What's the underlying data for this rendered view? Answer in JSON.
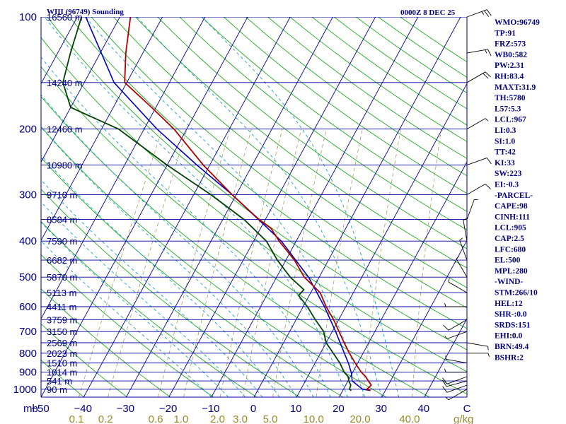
{
  "title": "WIII (96749) Sounding",
  "datetime": "0000Z  8 DEC 25",
  "colors": {
    "isobar": "#0000a0",
    "isotherm": "#0000a0",
    "dry_adiabat": "#22aa22",
    "moist_adiabat": "#1aa0c8",
    "mixing_ratio": "#a0a060",
    "temperature": "#b00000",
    "dewpoint": "#004000",
    "parcel": "#0000c0",
    "wind": "#000000",
    "text": "#000080"
  },
  "chart_data": {
    "type": "skew-t",
    "title": "WIII (96749) Sounding",
    "pressure_unit": "mb",
    "mixing_ratio_unit": "g/kg",
    "pressure_levels": [
      100,
      200,
      300,
      400,
      500,
      600,
      700,
      800,
      900,
      1000
    ],
    "height_levels": [
      {
        "label": "16560 m",
        "p": 100
      },
      {
        "label": "14240 m",
        "p": 150
      },
      {
        "label": "12460 m",
        "p": 200
      },
      {
        "label": "10980 m",
        "p": 250
      },
      {
        "label": "9710 m",
        "p": 300
      },
      {
        "label": "8584 m",
        "p": 350
      },
      {
        "label": "7590 m",
        "p": 400
      },
      {
        "label": "6682 m",
        "p": 450
      },
      {
        "label": "5870 m",
        "p": 500
      },
      {
        "label": "5113 m",
        "p": 550
      },
      {
        "label": "4411 m",
        "p": 600
      },
      {
        "label": "3759 m",
        "p": 650
      },
      {
        "label": "3150 m",
        "p": 700
      },
      {
        "label": "2569 m",
        "p": 750
      },
      {
        "label": "2023 m",
        "p": 800
      },
      {
        "label": "1510 m",
        "p": 850
      },
      {
        "label": "1014 m",
        "p": 900
      },
      {
        "label": "541 m",
        "p": 950
      },
      {
        "label": "90 m",
        "p": 1000
      }
    ],
    "temperature_ticks": [
      -50,
      -40,
      -30,
      -20,
      -10,
      0,
      10,
      20,
      30,
      40
    ],
    "mixing_ratio_ticks": [
      "0.1",
      "0.2",
      "0.6",
      "1.0",
      "2.0",
      "3.0",
      "5.0",
      "10.0",
      "20.0",
      "40.0"
    ],
    "mixing_ratio_values": [
      0.1,
      0.2,
      0.6,
      1.0,
      2.0,
      3.0,
      5.0,
      10.0,
      20.0,
      40.0
    ],
    "p_range": [
      100,
      1050
    ],
    "t_range": [
      -50,
      50
    ],
    "temperature_profile": [
      {
        "p": 1008,
        "t": 26.5
      },
      {
        "p": 1000,
        "t": 25.5
      },
      {
        "p": 975,
        "t": 26.0
      },
      {
        "p": 950,
        "t": 24.8
      },
      {
        "p": 925,
        "t": 23.6
      },
      {
        "p": 900,
        "t": 22.0
      },
      {
        "p": 850,
        "t": 19.4
      },
      {
        "p": 800,
        "t": 16.8
      },
      {
        "p": 750,
        "t": 14.2
      },
      {
        "p": 700,
        "t": 11.6
      },
      {
        "p": 650,
        "t": 8.8
      },
      {
        "p": 600,
        "t": 5.4
      },
      {
        "p": 550,
        "t": 2.2
      },
      {
        "p": 500,
        "t": -3.5
      },
      {
        "p": 450,
        "t": -8.0
      },
      {
        "p": 400,
        "t": -14.0
      },
      {
        "p": 370,
        "t": -17.5
      },
      {
        "p": 350,
        "t": -21.5
      },
      {
        "p": 300,
        "t": -31.0
      },
      {
        "p": 250,
        "t": -41.5
      },
      {
        "p": 200,
        "t": -53.0
      },
      {
        "p": 175,
        "t": -61.0
      },
      {
        "p": 150,
        "t": -70.5
      },
      {
        "p": 125,
        "t": -74.0
      },
      {
        "p": 100,
        "t": -77.5
      }
    ],
    "dewpoint_profile": [
      {
        "p": 1008,
        "t": 22.0
      },
      {
        "p": 1000,
        "t": 21.4
      },
      {
        "p": 975,
        "t": 21.2
      },
      {
        "p": 950,
        "t": 20.2
      },
      {
        "p": 925,
        "t": 19.5
      },
      {
        "p": 900,
        "t": 18.0
      },
      {
        "p": 850,
        "t": 15.8
      },
      {
        "p": 800,
        "t": 13.0
      },
      {
        "p": 750,
        "t": 10.0
      },
      {
        "p": 700,
        "t": 8.0
      },
      {
        "p": 650,
        "t": 4.5
      },
      {
        "p": 600,
        "t": 1.0
      },
      {
        "p": 560,
        "t": -2.5
      },
      {
        "p": 540,
        "t": -2.0
      },
      {
        "p": 500,
        "t": -6.8
      },
      {
        "p": 450,
        "t": -12.0
      },
      {
        "p": 400,
        "t": -17.0
      },
      {
        "p": 350,
        "t": -25.0
      },
      {
        "p": 300,
        "t": -36.0
      },
      {
        "p": 250,
        "t": -50.0
      },
      {
        "p": 200,
        "t": -66.0
      },
      {
        "p": 175,
        "t": -80.0
      },
      {
        "p": 150,
        "t": -85.0
      },
      {
        "p": 125,
        "t": -87.0
      },
      {
        "p": 100,
        "t": -89.0
      }
    ],
    "parcel_profile": [
      {
        "p": 1008,
        "t": 26.5
      },
      {
        "p": 1000,
        "t": 24.5
      },
      {
        "p": 950,
        "t": 21.0
      },
      {
        "p": 905,
        "t": 19.8
      },
      {
        "p": 850,
        "t": 17.8
      },
      {
        "p": 800,
        "t": 15.6
      },
      {
        "p": 700,
        "t": 10.8
      },
      {
        "p": 600,
        "t": 5.0
      },
      {
        "p": 500,
        "t": -2.5
      },
      {
        "p": 400,
        "t": -13.5
      },
      {
        "p": 300,
        "t": -31.0
      },
      {
        "p": 250,
        "t": -43.0
      },
      {
        "p": 200,
        "t": -57.0
      },
      {
        "p": 150,
        "t": -73.0
      },
      {
        "p": 100,
        "t": -88.0
      }
    ],
    "wind_barbs": [
      {
        "p": 1000,
        "dir": 240,
        "kt": 5
      },
      {
        "p": 975,
        "dir": 250,
        "kt": 10
      },
      {
        "p": 950,
        "dir": 255,
        "kt": 10
      },
      {
        "p": 925,
        "dir": 250,
        "kt": 10
      },
      {
        "p": 900,
        "dir": 270,
        "kt": 5
      },
      {
        "p": 850,
        "dir": 280,
        "kt": 5
      },
      {
        "p": 800,
        "dir": 90,
        "kt": 5
      },
      {
        "p": 750,
        "dir": 100,
        "kt": 5
      },
      {
        "p": 700,
        "dir": 250,
        "kt": 5
      },
      {
        "p": 650,
        "dir": 240,
        "kt": 10
      },
      {
        "p": 600,
        "dir": 270,
        "kt": 5
      },
      {
        "p": 550,
        "dir": 300,
        "kt": 5
      },
      {
        "p": 500,
        "dir": 330,
        "kt": 5
      },
      {
        "p": 450,
        "dir": 340,
        "kt": 5
      },
      {
        "p": 400,
        "dir": 350,
        "kt": 5
      },
      {
        "p": 350,
        "dir": 20,
        "kt": 5
      },
      {
        "p": 300,
        "dir": 60,
        "kt": 10
      },
      {
        "p": 250,
        "dir": 70,
        "kt": 10
      },
      {
        "p": 200,
        "dir": 60,
        "kt": 5
      },
      {
        "p": 150,
        "dir": 60,
        "kt": 20
      },
      {
        "p": 125,
        "dir": 80,
        "kt": 15
      },
      {
        "p": 100,
        "dir": 70,
        "kt": 25
      }
    ]
  },
  "indices": [
    "WMO:96749",
    "TP:91",
    "FRZ:573",
    "WB0:582",
    "PW:2.31",
    "RH:83.4",
    "MAXT:31.9",
    "TH:5780",
    "L57:5.3",
    "LCL:967",
    "LI:0.3",
    "SI:1.0",
    "TT:42",
    "KI:33",
    "SW:223",
    "EI:-0.3",
    "-PARCEL-",
    "CAPE:98",
    "CINH:111",
    "LCL:905",
    "CAP:2.5",
    "LFC:680",
    "EL:500",
    "MPL:280",
    "-WIND-",
    "STM:266/10",
    "HEL:12",
    "SHR-:0.0",
    "SRDS:151",
    "EHI:0.0",
    "BRN:49.4",
    "BSHR:2"
  ]
}
